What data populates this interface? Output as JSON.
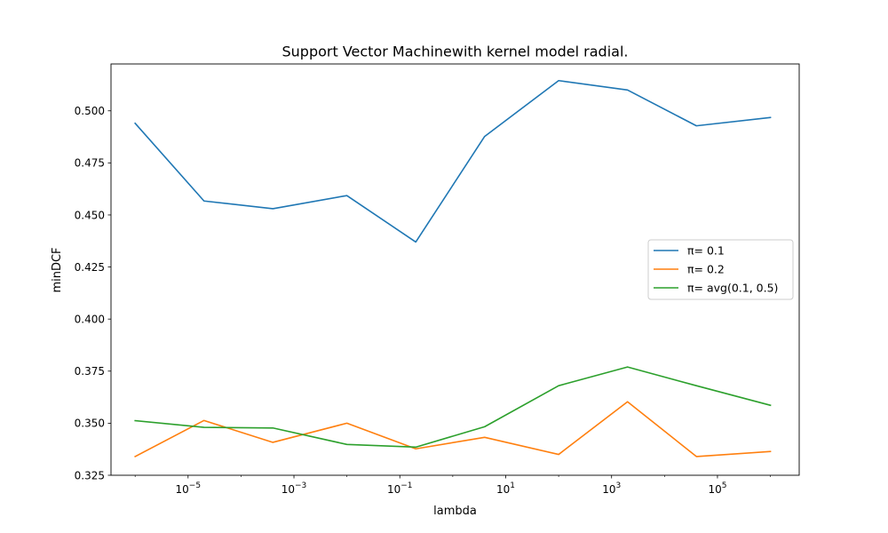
{
  "chart_data": {
    "type": "line",
    "title": "Support Vector Machinewith kernel model radial.",
    "xlabel": "lambda",
    "ylabel": "minDCF",
    "xscale": "log",
    "xlim": [
      3.5e-07,
      3500000.0
    ],
    "ylim": [
      0.325,
      0.5225
    ],
    "x": [
      1e-06,
      2e-05,
      0.0004,
      0.01,
      0.2,
      4,
      100,
      2000,
      40000,
      1000000
    ],
    "xticks": [
      {
        "value": 1e-05,
        "base": "10",
        "exp": "−5"
      },
      {
        "value": 0.001,
        "base": "10",
        "exp": "−3"
      },
      {
        "value": 0.1,
        "base": "10",
        "exp": "−1"
      },
      {
        "value": 10.0,
        "base": "10",
        "exp": "1"
      },
      {
        "value": 1000.0,
        "base": "10",
        "exp": "3"
      },
      {
        "value": 100000.0,
        "base": "10",
        "exp": "5"
      }
    ],
    "yticks": [
      {
        "value": 0.325,
        "label": "0.325"
      },
      {
        "value": 0.35,
        "label": "0.350"
      },
      {
        "value": 0.375,
        "label": "0.375"
      },
      {
        "value": 0.4,
        "label": "0.400"
      },
      {
        "value": 0.425,
        "label": "0.425"
      },
      {
        "value": 0.45,
        "label": "0.450"
      },
      {
        "value": 0.475,
        "label": "0.475"
      },
      {
        "value": 0.5,
        "label": "0.500"
      }
    ],
    "series": [
      {
        "name": "π= 0.1",
        "color": "#1f77b4",
        "values": [
          0.494,
          0.4567,
          0.453,
          0.4593,
          0.437,
          0.4877,
          0.5145,
          0.51,
          0.4928,
          0.4968
        ]
      },
      {
        "name": "π= 0.2",
        "color": "#ff7f0e",
        "values": [
          0.334,
          0.3513,
          0.3408,
          0.35,
          0.3377,
          0.3432,
          0.335,
          0.3603,
          0.334,
          0.3364
        ]
      },
      {
        "name": "π= avg(0.1, 0.5)",
        "color": "#2ca02c",
        "values": [
          0.3512,
          0.348,
          0.3477,
          0.3398,
          0.3385,
          0.3483,
          0.368,
          0.377,
          0.368,
          0.3586
        ]
      }
    ],
    "legend_position": "center-right",
    "grid": false
  }
}
